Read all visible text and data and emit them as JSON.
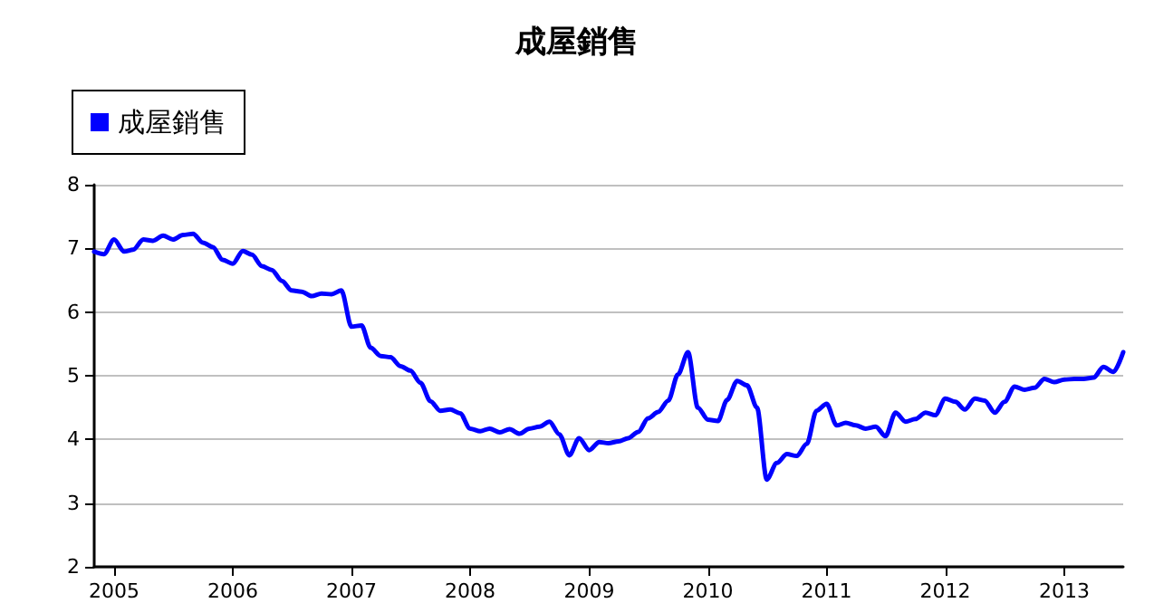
{
  "chart_data": {
    "type": "line",
    "title": "成屋銷售",
    "x": [
      "2004-11",
      "2004-12",
      "2005-01",
      "2005-02",
      "2005-03",
      "2005-04",
      "2005-05",
      "2005-06",
      "2005-07",
      "2005-08",
      "2005-09",
      "2005-10",
      "2005-11",
      "2005-12",
      "2006-01",
      "2006-02",
      "2006-03",
      "2006-04",
      "2006-05",
      "2006-06",
      "2006-07",
      "2006-08",
      "2006-09",
      "2006-10",
      "2006-11",
      "2006-12",
      "2007-01",
      "2007-02",
      "2007-03",
      "2007-04",
      "2007-05",
      "2007-06",
      "2007-07",
      "2007-08",
      "2007-09",
      "2007-10",
      "2007-11",
      "2007-12",
      "2008-01",
      "2008-02",
      "2008-03",
      "2008-04",
      "2008-05",
      "2008-06",
      "2008-07",
      "2008-08",
      "2008-09",
      "2008-10",
      "2008-11",
      "2008-12",
      "2009-01",
      "2009-02",
      "2009-03",
      "2009-04",
      "2009-05",
      "2009-06",
      "2009-07",
      "2009-08",
      "2009-09",
      "2009-10",
      "2009-11",
      "2009-12",
      "2010-01",
      "2010-02",
      "2010-03",
      "2010-04",
      "2010-05",
      "2010-06",
      "2010-07",
      "2010-08",
      "2010-09",
      "2010-10",
      "2010-11",
      "2010-12",
      "2011-01",
      "2011-02",
      "2011-03",
      "2011-04",
      "2011-05",
      "2011-06",
      "2011-07",
      "2011-08",
      "2011-09",
      "2011-10",
      "2011-11",
      "2011-12",
      "2012-01",
      "2012-02",
      "2012-03",
      "2012-04",
      "2012-05",
      "2012-06",
      "2012-07",
      "2012-08",
      "2012-09",
      "2012-10",
      "2012-11",
      "2012-12",
      "2013-01",
      "2013-02",
      "2013-03",
      "2013-04",
      "2013-05",
      "2013-06",
      "2013-07"
    ],
    "series": [
      {
        "name": "成屋銷售",
        "color": "#0000ff",
        "values": [
          6.95,
          6.91,
          7.14,
          6.95,
          6.98,
          7.14,
          7.12,
          7.2,
          7.14,
          7.21,
          7.23,
          7.09,
          7.02,
          6.82,
          6.76,
          6.96,
          6.9,
          6.72,
          6.66,
          6.49,
          6.34,
          6.32,
          6.25,
          6.29,
          6.28,
          6.34,
          5.77,
          5.79,
          5.44,
          5.31,
          5.29,
          5.15,
          5.08,
          4.89,
          4.6,
          4.45,
          4.47,
          4.41,
          4.17,
          4.13,
          4.17,
          4.11,
          4.16,
          4.09,
          4.17,
          4.2,
          4.28,
          4.08,
          3.75,
          4.02,
          3.83,
          3.96,
          3.94,
          3.97,
          4.02,
          4.12,
          4.33,
          4.43,
          4.61,
          5.02,
          5.37,
          4.5,
          4.31,
          4.29,
          4.62,
          4.92,
          4.85,
          4.5,
          3.37,
          3.63,
          3.77,
          3.74,
          3.93,
          4.45,
          4.56,
          4.22,
          4.26,
          4.22,
          4.17,
          4.2,
          4.05,
          4.42,
          4.28,
          4.32,
          4.42,
          4.38,
          4.64,
          4.59,
          4.47,
          4.64,
          4.61,
          4.42,
          4.59,
          4.83,
          4.78,
          4.81,
          4.95,
          4.9,
          4.94,
          4.95,
          4.95,
          4.97,
          5.14,
          5.06,
          5.37
        ]
      }
    ],
    "xlim": [
      "2004-11",
      "2013-07"
    ],
    "xticks": [
      {
        "value": "2005-01",
        "label": "2005"
      },
      {
        "value": "2006-01",
        "label": "2006"
      },
      {
        "value": "2007-01",
        "label": "2007"
      },
      {
        "value": "2008-01",
        "label": "2008"
      },
      {
        "value": "2009-01",
        "label": "2009"
      },
      {
        "value": "2010-01",
        "label": "2010"
      },
      {
        "value": "2011-01",
        "label": "2011"
      },
      {
        "value": "2012-01",
        "label": "2012"
      },
      {
        "value": "2013-01",
        "label": "2013"
      }
    ],
    "ylim": [
      2,
      8
    ],
    "yticks": [
      2,
      3,
      4,
      5,
      6,
      7,
      8
    ],
    "grid": "y",
    "legend": "top left",
    "marker": "none",
    "line_style": "solid"
  }
}
